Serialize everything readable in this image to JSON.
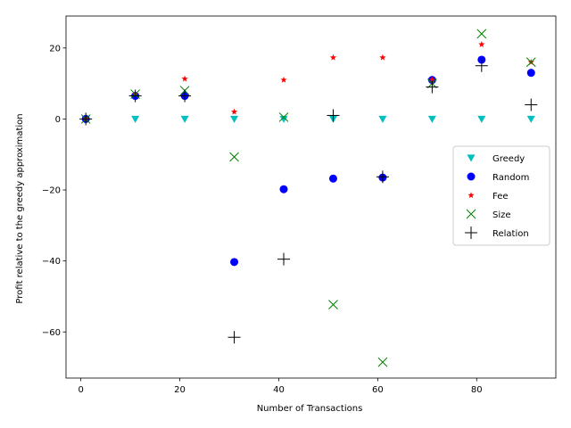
{
  "chart_data": {
    "type": "scatter",
    "title": "",
    "xlabel": "Number of Transactions",
    "ylabel": "Profit relative to the greedy approximation",
    "xlim": [
      -3,
      96
    ],
    "ylim": [
      -73,
      29
    ],
    "xticks": [
      0,
      20,
      40,
      60,
      80
    ],
    "yticks": [
      -60,
      -40,
      -20,
      0,
      20
    ],
    "grid": false,
    "legend_position": "center-right",
    "x": [
      1,
      11,
      21,
      31,
      41,
      51,
      61,
      71,
      81,
      91
    ],
    "series": [
      {
        "name": "Greedy",
        "marker": "triangle-down",
        "color": "#00bfbf",
        "values": [
          0,
          0,
          0,
          0,
          0,
          0,
          0,
          0,
          0,
          0
        ]
      },
      {
        "name": "Random",
        "marker": "circle",
        "color": "#0000ff",
        "values": [
          0,
          6.5,
          6.5,
          -40.3,
          -19.8,
          -16.8,
          -16.5,
          11,
          16.7,
          13
        ]
      },
      {
        "name": "Fee",
        "marker": "star",
        "color": "#ff0000",
        "values": [
          0,
          7,
          11.3,
          2,
          11,
          17.3,
          17.3,
          11,
          21,
          16
        ]
      },
      {
        "name": "Size",
        "marker": "x",
        "color": "#008000",
        "values": [
          0,
          7,
          8,
          -10.7,
          0.5,
          -52.3,
          -68.5,
          10,
          24,
          16
        ]
      },
      {
        "name": "Relation",
        "marker": "plus",
        "color": "#000000",
        "values": [
          0,
          6.5,
          6.5,
          -61.5,
          -39.5,
          1,
          -16.3,
          9,
          15,
          4
        ]
      }
    ]
  }
}
